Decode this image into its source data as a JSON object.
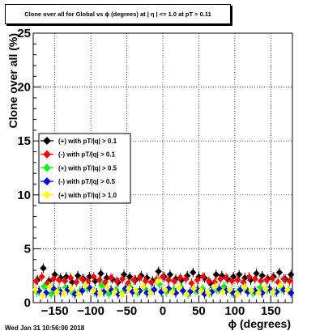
{
  "header": {
    "title": "Clone  over all for Global vs ϕ (degrees) at | η | <= 1.0 at pT > 0.11"
  },
  "footer": {
    "timestamp": "Wed Jan 31 10:56:00 2018"
  },
  "chart_data": {
    "type": "scatter",
    "title": "Clone  over all for Global vs ϕ (degrees) at | η | <= 1.0 at pT > 0.11",
    "xlabel": "ϕ (degrees)",
    "ylabel": "Clone  over all (%)",
    "xlim": [
      -180,
      180
    ],
    "ylim": [
      0,
      25
    ],
    "x_ticks": [
      -150,
      -100,
      -50,
      0,
      50,
      100,
      150
    ],
    "x_tick_labels": [
      "−150",
      "−100",
      "−50",
      "0",
      "50",
      "100",
      "150"
    ],
    "y_ticks": [
      0,
      5,
      10,
      15,
      20,
      25
    ],
    "y_tick_labels": [
      "0",
      "5",
      "10",
      "15",
      "20",
      "25"
    ],
    "grid": true,
    "legend_position": "upper-left",
    "series": [
      {
        "name": "(+) with pT/|q| > 0.1",
        "color": "#000000",
        "x": [
          -174,
          -166,
          -158,
          -150,
          -142,
          -134,
          -126,
          -118,
          -110,
          -102,
          -94,
          -86,
          -78,
          -70,
          -62,
          -54,
          -46,
          -38,
          -30,
          -22,
          -14,
          -6,
          2,
          10,
          18,
          26,
          34,
          42,
          50,
          58,
          66,
          74,
          82,
          90,
          98,
          106,
          114,
          122,
          130,
          138,
          146,
          154,
          162,
          170,
          178
        ],
        "y": [
          2.1,
          3.2,
          2.0,
          2.6,
          2.3,
          2.4,
          1.9,
          2.5,
          2.2,
          2.4,
          2.0,
          2.7,
          2.3,
          2.2,
          1.9,
          2.6,
          2.4,
          2.1,
          2.5,
          2.3,
          2.0,
          2.9,
          2.4,
          2.6,
          2.2,
          2.1,
          2.5,
          2.8,
          2.4,
          2.3,
          1.8,
          2.6,
          2.5,
          2.2,
          2.4,
          2.6,
          2.3,
          2.1,
          2.7,
          2.5,
          2.2,
          2.4,
          2.8,
          2.2,
          2.6
        ]
      },
      {
        "name": "(-) with pT/|q| > 0.1",
        "color": "#ff0000",
        "x": [
          -176,
          -168,
          -160,
          -152,
          -144,
          -136,
          -128,
          -120,
          -112,
          -104,
          -96,
          -88,
          -80,
          -72,
          -64,
          -56,
          -48,
          -40,
          -32,
          -24,
          -16,
          -8,
          0,
          8,
          16,
          24,
          32,
          40,
          48,
          56,
          64,
          72,
          80,
          88,
          96,
          104,
          112,
          120,
          128,
          136,
          144,
          152,
          160,
          168,
          176
        ],
        "y": [
          2.0,
          2.4,
          1.8,
          2.2,
          2.1,
          2.0,
          2.3,
          1.9,
          2.2,
          2.0,
          2.4,
          2.1,
          1.9,
          2.3,
          2.0,
          2.2,
          1.8,
          2.1,
          2.3,
          2.0,
          1.9,
          2.2,
          2.4,
          2.1,
          2.0,
          2.3,
          2.2,
          1.8,
          2.1,
          2.4,
          2.0,
          1.9,
          2.2,
          2.3,
          2.0,
          2.1,
          1.9,
          2.4,
          2.2,
          2.0,
          2.1,
          2.3,
          1.9,
          2.2,
          2.0
        ]
      },
      {
        "name": "(+) with pT/|q| > 0.5",
        "color": "#00ff00",
        "x": [
          -175,
          -165,
          -155,
          -145,
          -135,
          -125,
          -115,
          -105,
          -95,
          -85,
          -75,
          -65,
          -55,
          -45,
          -35,
          -25,
          -15,
          -5,
          5,
          15,
          25,
          35,
          45,
          55,
          65,
          75,
          85,
          95,
          105,
          115,
          125,
          135,
          145,
          155,
          165,
          175
        ],
        "y": [
          1.0,
          1.5,
          0.8,
          1.2,
          1.4,
          0.9,
          1.1,
          1.3,
          1.0,
          1.6,
          0.8,
          1.2,
          1.0,
          1.4,
          0.9,
          1.3,
          1.1,
          1.7,
          1.0,
          1.2,
          1.4,
          0.8,
          1.1,
          1.3,
          0.9,
          1.2,
          1.5,
          1.0,
          1.1,
          1.3,
          0.9,
          1.4,
          1.2,
          1.0,
          1.3,
          1.1
        ]
      },
      {
        "name": "(-) with pT/|q| > 0.5",
        "color": "#0000ff",
        "x": [
          -172,
          -162,
          -152,
          -142,
          -132,
          -122,
          -112,
          -102,
          -92,
          -82,
          -72,
          -62,
          -52,
          -42,
          -32,
          -22,
          -12,
          -2,
          8,
          18,
          28,
          38,
          48,
          58,
          68,
          78,
          88,
          98,
          108,
          118,
          128,
          138,
          148,
          158,
          168,
          178
        ],
        "y": [
          1.1,
          0.9,
          1.3,
          1.0,
          1.2,
          0.8,
          1.1,
          1.4,
          0.9,
          1.0,
          1.2,
          0.8,
          1.3,
          1.0,
          1.1,
          0.9,
          1.2,
          1.0,
          1.3,
          0.9,
          1.1,
          1.0,
          1.2,
          0.8,
          1.0,
          1.3,
          1.1,
          0.9,
          1.2,
          1.0,
          1.1,
          0.9,
          1.3,
          1.0,
          1.2,
          0.9
        ]
      },
      {
        "name": "(+) with pT/|q| > 1.0",
        "color": "#ffff00",
        "x": [
          -177,
          -167,
          -157,
          -147,
          -137,
          -127,
          -117,
          -107,
          -97,
          -87,
          -77,
          -67,
          -57,
          -47,
          -37,
          -27,
          -17,
          -7,
          3,
          13,
          23,
          33,
          43,
          53,
          63,
          73,
          83,
          93,
          103,
          113,
          123,
          133,
          143,
          153,
          163,
          173
        ],
        "y": [
          1.2,
          0.7,
          1.5,
          1.0,
          0.9,
          1.3,
          0.8,
          1.6,
          1.1,
          0.9,
          1.4,
          1.0,
          0.8,
          1.3,
          1.1,
          1.5,
          0.9,
          2.0,
          1.2,
          1.0,
          1.4,
          0.8,
          1.3,
          1.1,
          0.9,
          1.5,
          1.0,
          1.2,
          0.8,
          1.4,
          1.1,
          0.9,
          1.3,
          1.0,
          1.6,
          1.2
        ]
      }
    ]
  }
}
